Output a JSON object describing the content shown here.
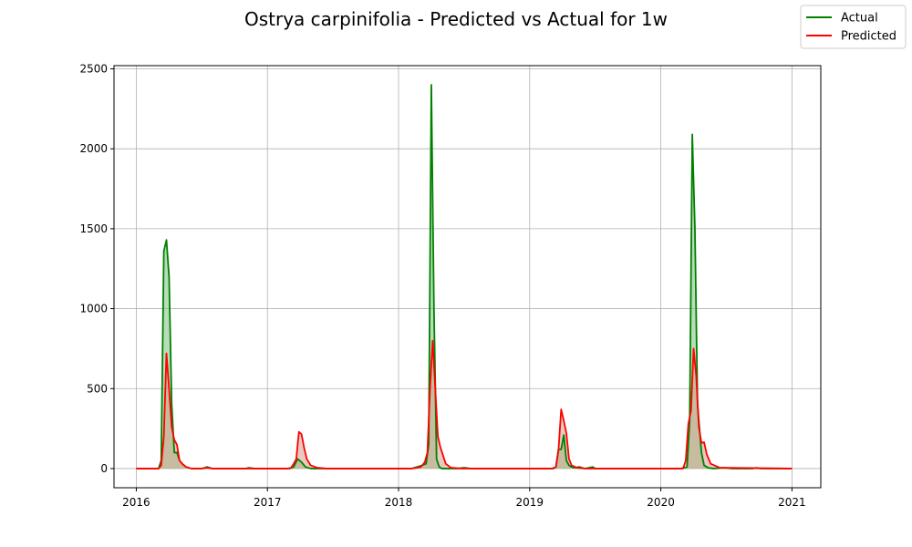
{
  "chart_data": {
    "type": "area",
    "title": "Ostrya carpinifolia - Predicted vs Actual for 1w",
    "xlabel": "",
    "ylabel": "",
    "xlim": [
      2015.83,
      2021.22
    ],
    "ylim": [
      -120,
      2520
    ],
    "xticks": [
      2016,
      2017,
      2018,
      2019,
      2020,
      2021
    ],
    "xtick_labels": [
      "2016",
      "2017",
      "2018",
      "2019",
      "2020",
      "2021"
    ],
    "yticks": [
      0,
      500,
      1000,
      1500,
      2000,
      2500
    ],
    "ytick_labels": [
      "0",
      "500",
      "1000",
      "1500",
      "2000",
      "2500"
    ],
    "grid": true,
    "legend_position": "top-right",
    "series": [
      {
        "name": "Actual",
        "color": "#008000",
        "fill": "#7fbf7f",
        "x": [
          2016.0,
          2016.17,
          2016.19,
          2016.21,
          2016.23,
          2016.25,
          2016.27,
          2016.29,
          2016.31,
          2016.33,
          2016.35,
          2016.38,
          2016.42,
          2016.5,
          2016.54,
          2016.58,
          2016.83,
          2016.86,
          2016.9,
          2017.17,
          2017.2,
          2017.23,
          2017.26,
          2017.29,
          2017.33,
          2017.4,
          2017.9,
          2018.1,
          2018.18,
          2018.21,
          2018.23,
          2018.25,
          2018.27,
          2018.29,
          2018.31,
          2018.33,
          2018.37,
          2018.45,
          2018.5,
          2018.55,
          2019.18,
          2019.2,
          2019.22,
          2019.24,
          2019.26,
          2019.28,
          2019.3,
          2019.32,
          2019.34,
          2019.38,
          2019.42,
          2019.48,
          2019.5,
          2019.55,
          2020.15,
          2020.2,
          2020.22,
          2020.24,
          2020.26,
          2020.28,
          2020.31,
          2020.33,
          2020.36,
          2020.4,
          2020.48,
          2020.55,
          2020.7,
          2020.73,
          2020.76,
          2021.0
        ],
        "values": [
          0,
          0,
          50,
          1360,
          1430,
          1200,
          400,
          100,
          100,
          50,
          30,
          10,
          0,
          0,
          10,
          0,
          0,
          5,
          0,
          0,
          10,
          60,
          40,
          10,
          0,
          0,
          0,
          0,
          20,
          30,
          150,
          2400,
          1000,
          60,
          10,
          0,
          0,
          0,
          5,
          0,
          0,
          10,
          120,
          120,
          210,
          50,
          20,
          10,
          5,
          10,
          0,
          10,
          0,
          0,
          0,
          10,
          300,
          2090,
          1500,
          400,
          100,
          20,
          5,
          0,
          5,
          0,
          0,
          5,
          0,
          0
        ]
      },
      {
        "name": "Predicted",
        "color": "#ff0000",
        "fill": "#d4a08c",
        "x": [
          2016.0,
          2016.17,
          2016.19,
          2016.21,
          2016.23,
          2016.25,
          2016.27,
          2016.29,
          2016.31,
          2016.33,
          2016.35,
          2016.38,
          2016.42,
          2016.5,
          2016.54,
          2016.58,
          2017.15,
          2017.18,
          2017.2,
          2017.22,
          2017.24,
          2017.26,
          2017.28,
          2017.3,
          2017.33,
          2017.38,
          2017.45,
          2018.1,
          2018.17,
          2018.2,
          2018.22,
          2018.24,
          2018.26,
          2018.28,
          2018.3,
          2018.32,
          2018.34,
          2018.36,
          2018.4,
          2018.48,
          2019.17,
          2019.2,
          2019.22,
          2019.24,
          2019.26,
          2019.28,
          2019.3,
          2019.32,
          2019.36,
          2019.42,
          2019.5,
          2020.17,
          2020.19,
          2020.21,
          2020.23,
          2020.25,
          2020.27,
          2020.29,
          2020.31,
          2020.33,
          2020.35,
          2020.38,
          2020.45,
          2021.0
        ],
        "values": [
          0,
          0,
          20,
          200,
          720,
          500,
          260,
          180,
          150,
          50,
          30,
          10,
          0,
          0,
          5,
          0,
          0,
          5,
          30,
          60,
          230,
          215,
          130,
          60,
          20,
          5,
          0,
          0,
          10,
          40,
          100,
          500,
          800,
          500,
          200,
          130,
          80,
          30,
          5,
          0,
          0,
          10,
          120,
          370,
          300,
          220,
          60,
          20,
          5,
          0,
          0,
          0,
          50,
          280,
          360,
          750,
          580,
          260,
          160,
          165,
          90,
          30,
          5,
          0
        ]
      }
    ]
  }
}
